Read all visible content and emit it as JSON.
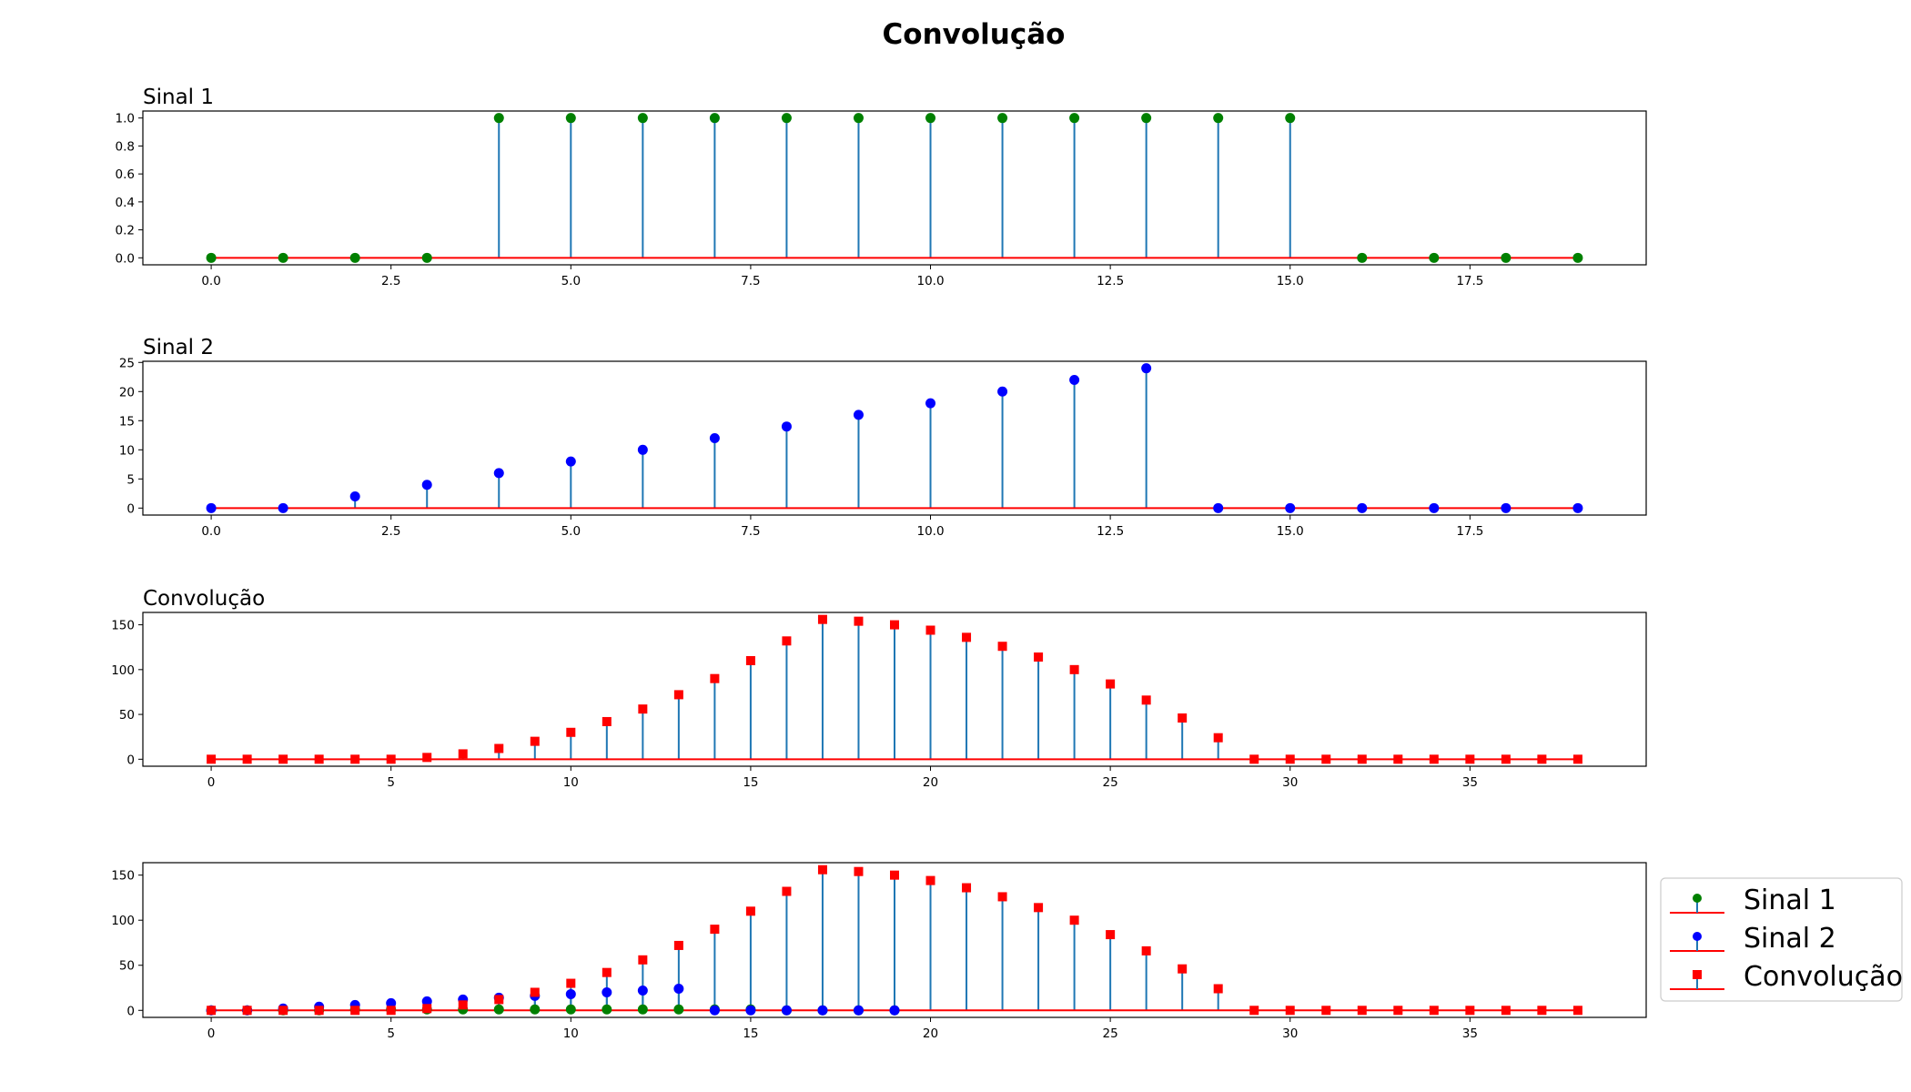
{
  "figure": {
    "title": "Convolução"
  },
  "chart_data": [
    {
      "type": "stem",
      "title": "Sinal 1",
      "x": [
        0,
        1,
        2,
        3,
        4,
        5,
        6,
        7,
        8,
        9,
        10,
        11,
        12,
        13,
        14,
        15,
        16,
        17,
        18,
        19
      ],
      "series": [
        {
          "values": [
            0,
            0,
            0,
            0,
            1,
            1,
            1,
            1,
            1,
            1,
            1,
            1,
            1,
            1,
            1,
            1,
            0,
            0,
            0,
            0
          ],
          "marker": "circle",
          "color": "#008000"
        }
      ],
      "xlim": [
        -0.95,
        19.95
      ],
      "ylim": [
        -0.05,
        1.05
      ],
      "xticks": [
        0.0,
        2.5,
        5.0,
        7.5,
        10.0,
        12.5,
        15.0,
        17.5
      ],
      "yticks": [
        0.0,
        0.2,
        0.4,
        0.6,
        0.8,
        1.0
      ],
      "xdecimals": 1,
      "ydecimals": 1
    },
    {
      "type": "stem",
      "title": "Sinal 2",
      "x": [
        0,
        1,
        2,
        3,
        4,
        5,
        6,
        7,
        8,
        9,
        10,
        11,
        12,
        13,
        14,
        15,
        16,
        17,
        18,
        19
      ],
      "series": [
        {
          "values": [
            0,
            0,
            2,
            4,
            6,
            8,
            10,
            12,
            14,
            16,
            18,
            20,
            22,
            24,
            0,
            0,
            0,
            0,
            0,
            0
          ],
          "marker": "circle",
          "color": "#0000ff"
        }
      ],
      "xlim": [
        -0.95,
        19.95
      ],
      "ylim": [
        -1.2,
        25.2
      ],
      "xticks": [
        0.0,
        2.5,
        5.0,
        7.5,
        10.0,
        12.5,
        15.0,
        17.5
      ],
      "yticks": [
        0,
        5,
        10,
        15,
        20,
        25
      ],
      "xdecimals": 1,
      "ydecimals": 0
    },
    {
      "type": "stem",
      "title": "Convolução",
      "x": [
        0,
        1,
        2,
        3,
        4,
        5,
        6,
        7,
        8,
        9,
        10,
        11,
        12,
        13,
        14,
        15,
        16,
        17,
        18,
        19,
        20,
        21,
        22,
        23,
        24,
        25,
        26,
        27,
        28,
        29,
        30,
        31,
        32,
        33,
        34,
        35,
        36,
        37,
        38
      ],
      "series": [
        {
          "values": [
            0,
            0,
            0,
            0,
            0,
            0,
            2,
            6,
            12,
            20,
            30,
            42,
            56,
            72,
            90,
            110,
            132,
            156,
            154,
            150,
            144,
            136,
            126,
            114,
            100,
            84,
            66,
            46,
            24,
            0,
            0,
            0,
            0,
            0,
            0,
            0,
            0,
            0,
            0
          ],
          "marker": "square",
          "color": "#ff0000"
        }
      ],
      "xlim": [
        -1.9,
        39.9
      ],
      "ylim": [
        -7.8,
        163.8
      ],
      "xticks": [
        0,
        5,
        10,
        15,
        20,
        25,
        30,
        35
      ],
      "yticks": [
        0,
        50,
        100,
        150
      ],
      "xdecimals": 0,
      "ydecimals": 0
    },
    {
      "type": "stem",
      "title": "",
      "x": [
        0,
        1,
        2,
        3,
        4,
        5,
        6,
        7,
        8,
        9,
        10,
        11,
        12,
        13,
        14,
        15,
        16,
        17,
        18,
        19,
        20,
        21,
        22,
        23,
        24,
        25,
        26,
        27,
        28,
        29,
        30,
        31,
        32,
        33,
        34,
        35,
        36,
        37,
        38
      ],
      "series": [
        {
          "name": "Sinal 1",
          "x": [
            0,
            1,
            2,
            3,
            4,
            5,
            6,
            7,
            8,
            9,
            10,
            11,
            12,
            13,
            14,
            15,
            16,
            17,
            18,
            19
          ],
          "values": [
            0,
            0,
            0,
            0,
            1,
            1,
            1,
            1,
            1,
            1,
            1,
            1,
            1,
            1,
            1,
            1,
            0,
            0,
            0,
            0
          ],
          "marker": "circle",
          "color": "#008000"
        },
        {
          "name": "Sinal 2",
          "x": [
            0,
            1,
            2,
            3,
            4,
            5,
            6,
            7,
            8,
            9,
            10,
            11,
            12,
            13,
            14,
            15,
            16,
            17,
            18,
            19
          ],
          "values": [
            0,
            0,
            2,
            4,
            6,
            8,
            10,
            12,
            14,
            16,
            18,
            20,
            22,
            24,
            0,
            0,
            0,
            0,
            0,
            0
          ],
          "marker": "circle",
          "color": "#0000ff"
        },
        {
          "name": "Convolução",
          "values": [
            0,
            0,
            0,
            0,
            0,
            0,
            2,
            6,
            12,
            20,
            30,
            42,
            56,
            72,
            90,
            110,
            132,
            156,
            154,
            150,
            144,
            136,
            126,
            114,
            100,
            84,
            66,
            46,
            24,
            0,
            0,
            0,
            0,
            0,
            0,
            0,
            0,
            0,
            0
          ],
          "marker": "square",
          "color": "#ff0000"
        }
      ],
      "xlim": [
        -1.9,
        39.9
      ],
      "ylim": [
        -7.8,
        163.8
      ],
      "xticks": [
        0,
        5,
        10,
        15,
        20,
        25,
        30,
        35
      ],
      "yticks": [
        0,
        50,
        100,
        150
      ],
      "xdecimals": 0,
      "ydecimals": 0,
      "legend": "outside-right",
      "grid": false
    }
  ],
  "colors": {
    "stem": "#1f77b4",
    "baseline": "#ff0000",
    "axes": "#000000"
  }
}
